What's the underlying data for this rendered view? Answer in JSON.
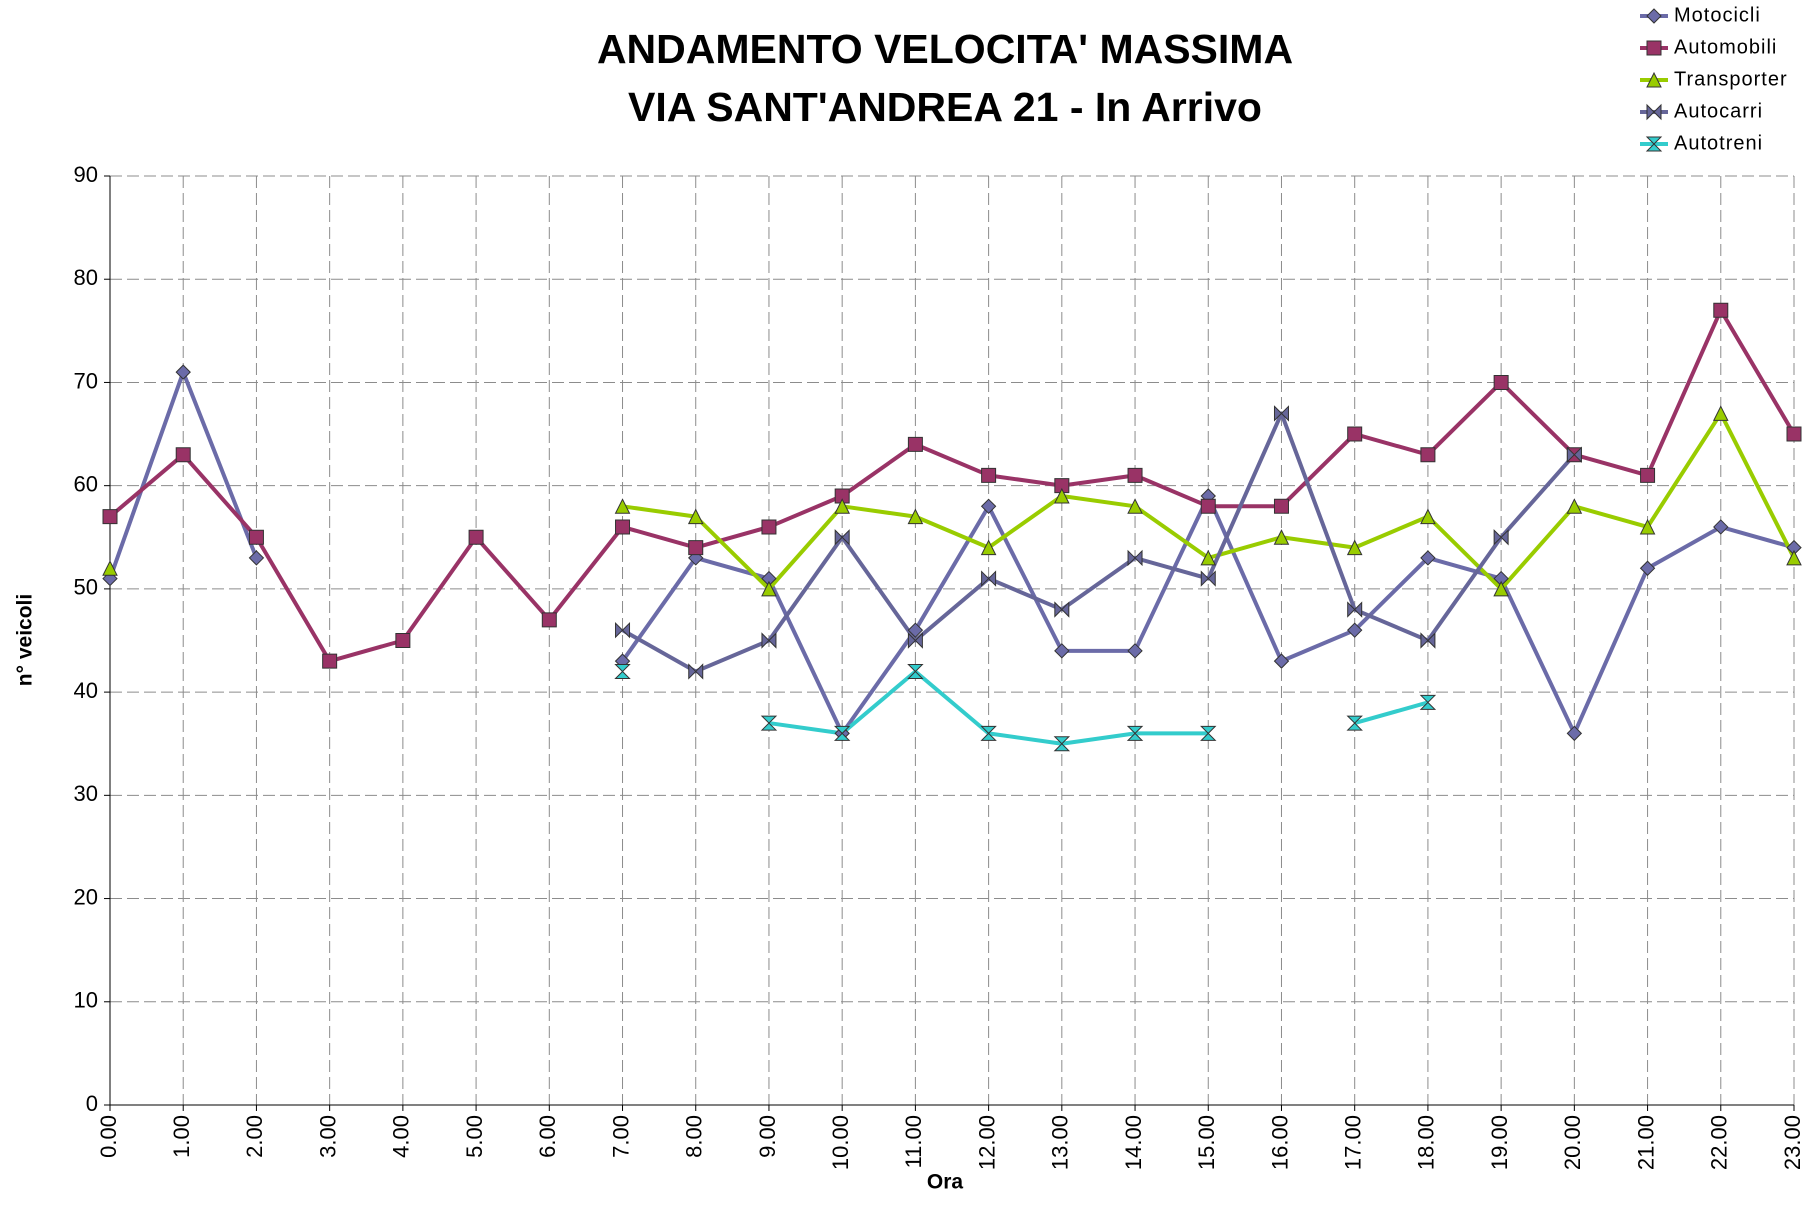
{
  "chart_data": {
    "type": "line",
    "title": [
      "ANDAMENTO VELOCITA' MASSIMA",
      "VIA  SANT'ANDREA 21 - In Arrivo"
    ],
    "x_label": "Ora",
    "y_label": "n° veicoli",
    "categories": [
      "0.00",
      "1.00",
      "2.00",
      "3.00",
      "4.00",
      "5.00",
      "6.00",
      "7.00",
      "8.00",
      "9.00",
      "10.00",
      "11.00",
      "12.00",
      "13.00",
      "14.00",
      "15.00",
      "16.00",
      "17.00",
      "18.00",
      "19.00",
      "20.00",
      "21.00",
      "22.00",
      "23.00"
    ],
    "series": [
      {
        "name": "Motocicli",
        "color": "#6b6ba8",
        "marker": "diamond",
        "values": [
          51,
          71,
          53,
          null,
          null,
          null,
          null,
          43,
          53,
          51,
          36,
          46,
          58,
          44,
          44,
          59,
          43,
          46,
          53,
          51,
          36,
          52,
          56,
          54
        ]
      },
      {
        "name": "Automobili",
        "color": "#993366",
        "marker": "square",
        "values": [
          57,
          63,
          55,
          43,
          45,
          55,
          47,
          56,
          54,
          56,
          59,
          64,
          61,
          60,
          61,
          58,
          58,
          65,
          63,
          70,
          63,
          61,
          77,
          65
        ]
      },
      {
        "name": "Transporter",
        "color": "#99cc00",
        "marker": "triangle",
        "values": [
          52,
          null,
          null,
          null,
          null,
          null,
          null,
          58,
          57,
          50,
          58,
          57,
          54,
          59,
          58,
          53,
          55,
          54,
          57,
          50,
          58,
          56,
          67,
          53
        ]
      },
      {
        "name": "Autocarri",
        "color": "#666699",
        "marker": "bowtie",
        "values": [
          null,
          null,
          null,
          null,
          null,
          null,
          null,
          46,
          42,
          45,
          55,
          45,
          51,
          48,
          53,
          51,
          67,
          48,
          45,
          55,
          63,
          null,
          null,
          null
        ]
      },
      {
        "name": "Autotreni",
        "color": "#33cccc",
        "marker": "hourglass",
        "values": [
          null,
          null,
          null,
          null,
          null,
          null,
          null,
          42,
          null,
          37,
          36,
          42,
          36,
          35,
          36,
          36,
          null,
          37,
          39,
          null,
          null,
          null,
          null,
          null
        ]
      }
    ],
    "ylim": [
      0,
      90
    ],
    "yticks": [
      0,
      10,
      20,
      30,
      40,
      50,
      60,
      70,
      80,
      90
    ],
    "grid": true,
    "legend": "top-right"
  }
}
